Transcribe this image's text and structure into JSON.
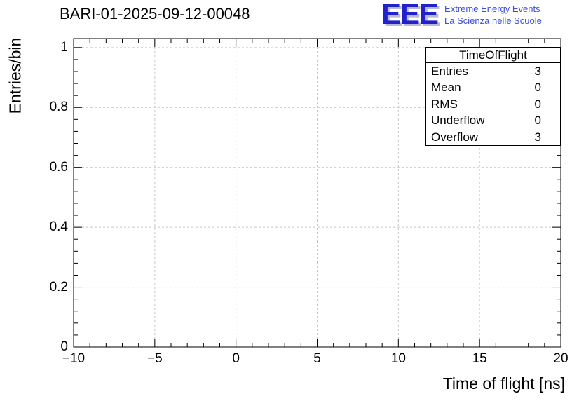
{
  "logo": {
    "acronym": "EEE",
    "line1": "Extreme Energy Events",
    "line2": "La Scienza nelle Scuole"
  },
  "colors": {
    "logo_blue": "#2222cc",
    "logo_text_blue": "#3b4ede",
    "logo_shadow": "#b9b9cf",
    "grid": "#c6c6c6",
    "axis": "#000000"
  },
  "stats_box": {
    "title": "TimeOfFlight",
    "rows": [
      {
        "label": "Entries",
        "value": "3"
      },
      {
        "label": "Mean",
        "value": "0"
      },
      {
        "label": "RMS",
        "value": "0"
      },
      {
        "label": "Underflow",
        "value": "0"
      },
      {
        "label": "Overflow",
        "value": "3"
      }
    ]
  },
  "chart_data": {
    "type": "bar",
    "title": "BARI-01-2025-09-12-00048",
    "xlabel": "Time of flight [ns]",
    "ylabel": "Entries/bin",
    "xlim": [
      -10,
      20
    ],
    "ylim": [
      0,
      1.03
    ],
    "x_tick_values": [
      -10,
      -5,
      0,
      5,
      10,
      15,
      20
    ],
    "x_tick_labels": [
      "−10",
      "−5",
      "0",
      "5",
      "10",
      "15",
      "20"
    ],
    "x_minor_step": 1,
    "y_tick_values": [
      0,
      0.2,
      0.4,
      0.6,
      0.8,
      1
    ],
    "y_tick_labels": [
      "0",
      "0.2",
      "0.4",
      "0.6",
      "0.8",
      "1"
    ],
    "y_minor_step": 0.04,
    "grid": true,
    "grid_style": "dashed",
    "legend": "none",
    "bins": [],
    "values": [],
    "stats": {
      "name": "TimeOfFlight",
      "entries": 3,
      "mean": 0,
      "rms": 0,
      "underflow": 0,
      "overflow": 3
    }
  }
}
